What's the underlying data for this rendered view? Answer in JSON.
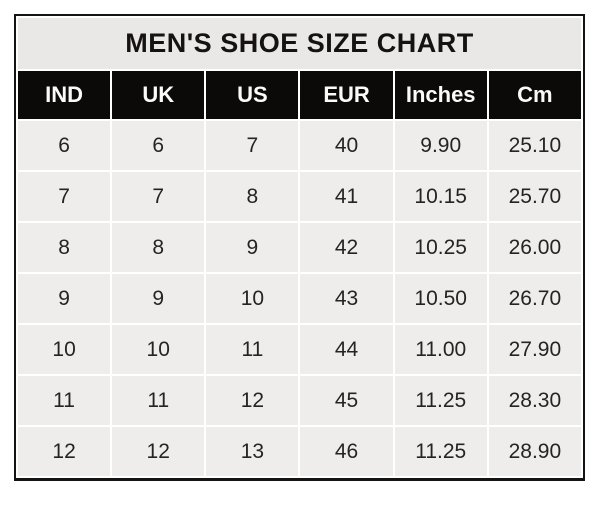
{
  "table": {
    "title": "MEN'S SHOE SIZE CHART",
    "columns": [
      "IND",
      "UK",
      "US",
      "EUR",
      "Inches",
      "Cm"
    ],
    "rows": [
      [
        "6",
        "6",
        "7",
        "40",
        "9.90",
        "25.10"
      ],
      [
        "7",
        "7",
        "8",
        "41",
        "10.15",
        "25.70"
      ],
      [
        "8",
        "8",
        "9",
        "42",
        "10.25",
        "26.00"
      ],
      [
        "9",
        "9",
        "10",
        "43",
        "10.50",
        "26.70"
      ],
      [
        "10",
        "10",
        "11",
        "44",
        "11.00",
        "27.90"
      ],
      [
        "11",
        "11",
        "12",
        "45",
        "11.25",
        "28.30"
      ],
      [
        "12",
        "12",
        "13",
        "46",
        "11.25",
        "28.90"
      ]
    ]
  },
  "colors": {
    "outer_border": "#141414",
    "title_background": "#eae8e7",
    "header_background": "#0b0a09",
    "header_text": "#fbfaf9",
    "cell_background": "#efedec",
    "cell_text": "#262422",
    "gridline_gap": "#ffffff",
    "page_background": "#ffffff"
  },
  "chart_data": {
    "type": "table",
    "title": "MEN'S SHOE SIZE CHART",
    "columns": [
      "IND",
      "UK",
      "US",
      "EUR",
      "Inches",
      "Cm"
    ],
    "rows": [
      [
        6,
        6,
        7,
        40,
        9.9,
        25.1
      ],
      [
        7,
        7,
        8,
        41,
        10.15,
        25.7
      ],
      [
        8,
        8,
        9,
        42,
        10.25,
        26.0
      ],
      [
        9,
        9,
        10,
        43,
        10.5,
        26.7
      ],
      [
        10,
        10,
        11,
        44,
        11.0,
        27.9
      ],
      [
        11,
        11,
        12,
        45,
        11.25,
        28.3
      ],
      [
        12,
        12,
        13,
        46,
        11.25,
        28.9
      ]
    ]
  }
}
